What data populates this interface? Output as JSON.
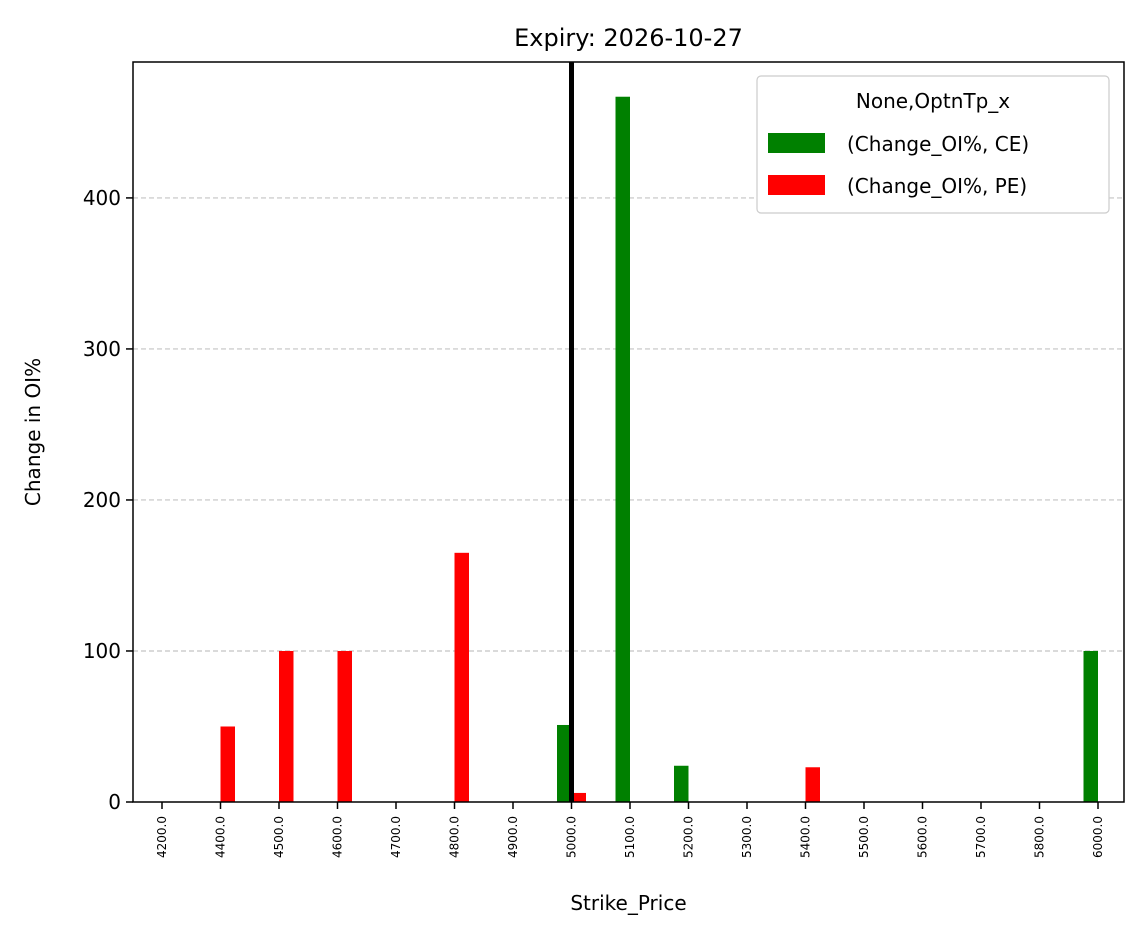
{
  "chart_data": {
    "type": "bar",
    "title": "Expiry: 2026-10-27",
    "xlabel": "Strike_Price",
    "ylabel": "Change in OI%",
    "categories": [
      "4200.0",
      "4400.0",
      "4500.0",
      "4600.0",
      "4700.0",
      "4800.0",
      "4900.0",
      "5000.0",
      "5100.0",
      "5200.0",
      "5300.0",
      "5400.0",
      "5500.0",
      "5600.0",
      "5700.0",
      "5800.0",
      "6000.0"
    ],
    "series": [
      {
        "name": "(Change_OI%, CE)",
        "color": "#008000",
        "values": [
          0,
          0,
          0,
          0,
          0,
          0,
          0,
          51,
          467,
          24,
          0,
          0,
          0,
          0,
          0,
          0,
          100
        ]
      },
      {
        "name": "(Change_OI%, PE)",
        "color": "#ff0000",
        "values": [
          0,
          50,
          100,
          100,
          0,
          165,
          0,
          6,
          0,
          0,
          0,
          23,
          0,
          0,
          0,
          0,
          0
        ]
      }
    ],
    "ylim": [
      0,
      490
    ],
    "yticks": [
      0,
      100,
      200,
      300,
      400
    ],
    "grid": "y-dashed",
    "legend": {
      "title": "None,OptnTp_x",
      "placement": "top-right"
    },
    "vertical_line": {
      "category": "5000.0",
      "color": "#000000"
    }
  }
}
